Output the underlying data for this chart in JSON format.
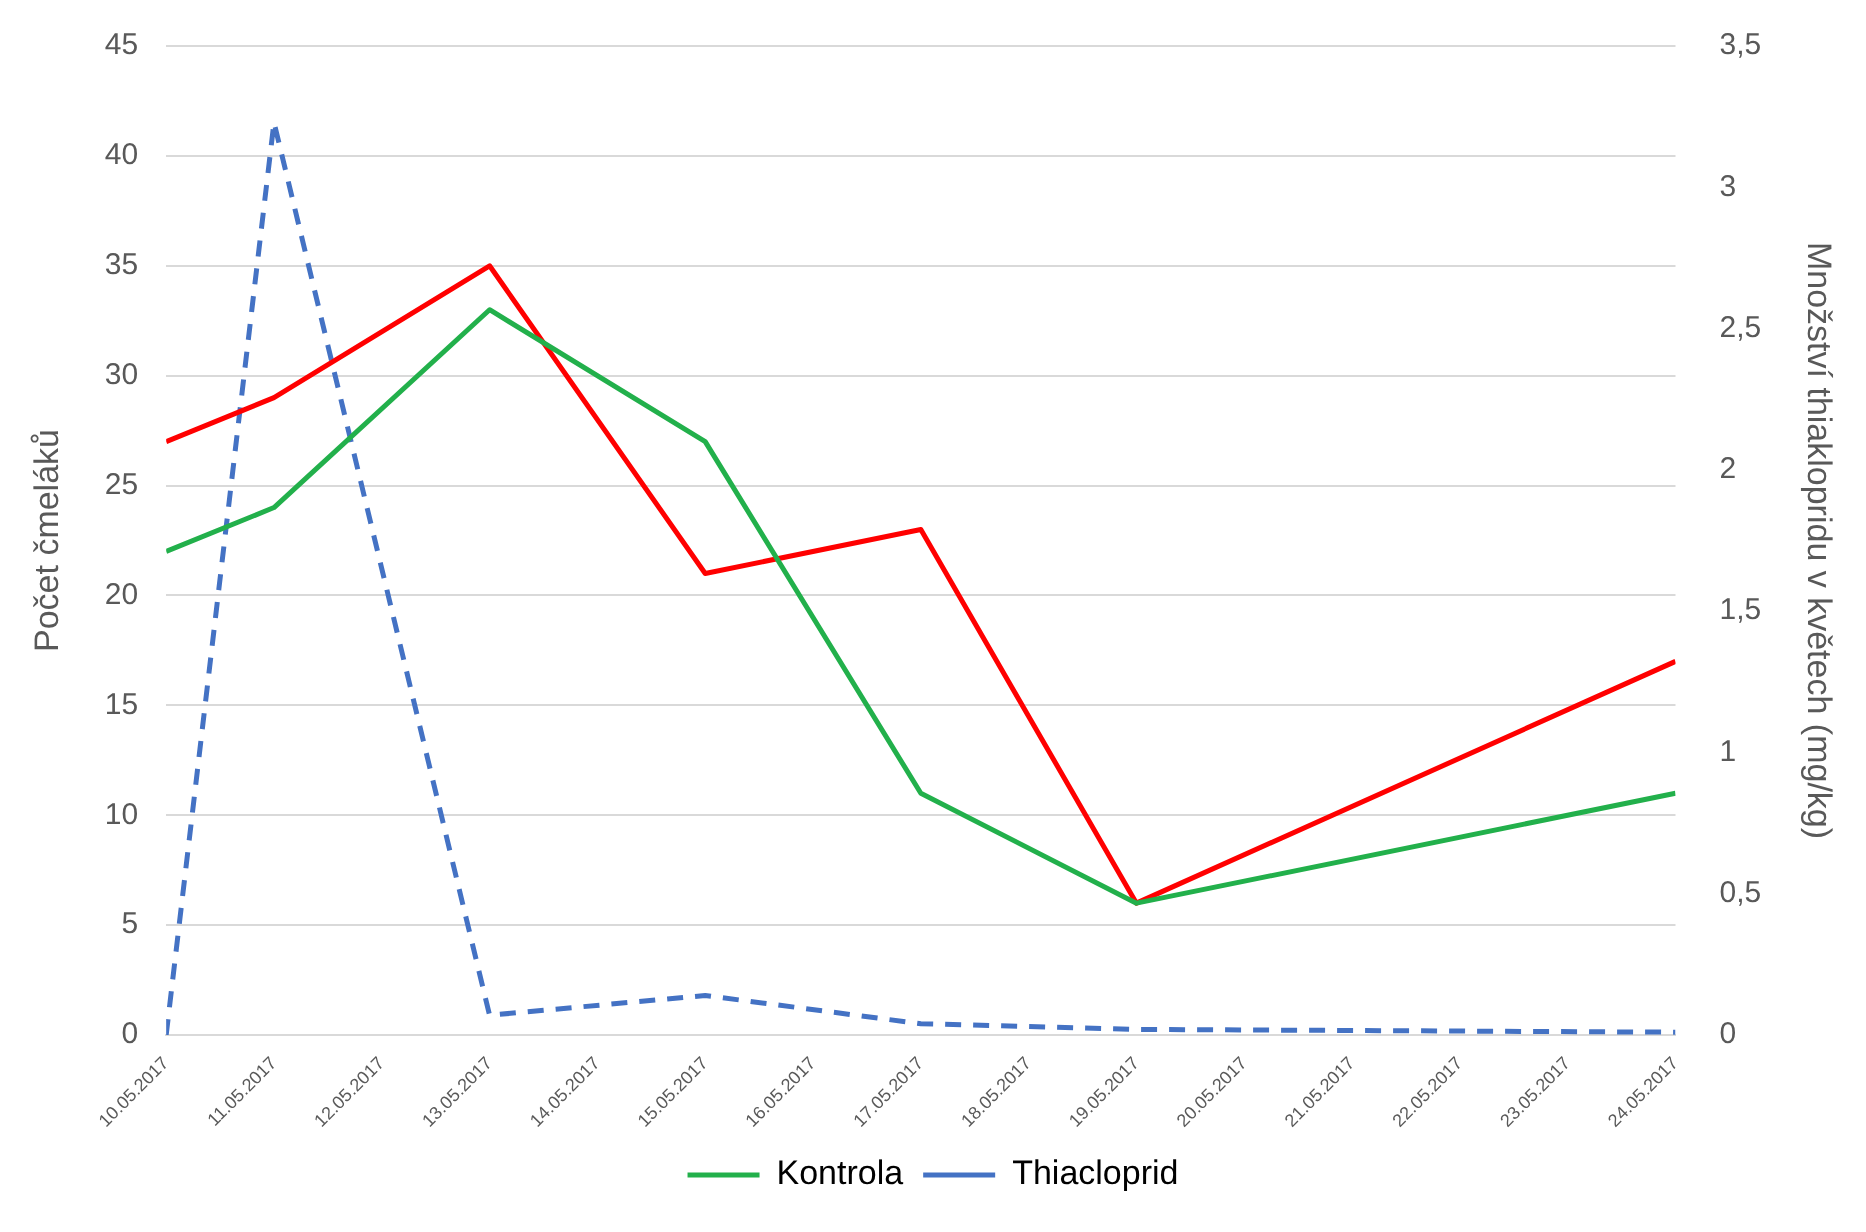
{
  "chart_data": {
    "type": "line",
    "ylabel": "Počet čmeláků",
    "y2label": "Množství thiaklopridu v květech (mg/kg)",
    "xlim": [
      "2017-05-10",
      "2017-05-24"
    ],
    "xticks": [
      {
        "value": "2017-05-10",
        "label": "10.05.2017"
      },
      {
        "value": "2017-05-11",
        "label": "11.05.2017"
      },
      {
        "value": "2017-05-12",
        "label": "12.05.2017"
      },
      {
        "value": "2017-05-13",
        "label": "13.05.2017"
      },
      {
        "value": "2017-05-14",
        "label": "14.05.2017"
      },
      {
        "value": "2017-05-15",
        "label": "15.05.2017"
      },
      {
        "value": "2017-05-16",
        "label": "16.05.2017"
      },
      {
        "value": "2017-05-17",
        "label": "17.05.2017"
      },
      {
        "value": "2017-05-18",
        "label": "18.05.2017"
      },
      {
        "value": "2017-05-19",
        "label": "19.05.2017"
      },
      {
        "value": "2017-05-20",
        "label": "20.05.2017"
      },
      {
        "value": "2017-05-21",
        "label": "21.05.2017"
      },
      {
        "value": "2017-05-22",
        "label": "22.05.2017"
      },
      {
        "value": "2017-05-23",
        "label": "23.05.2017"
      },
      {
        "value": "2017-05-24",
        "label": "24.05.2017"
      }
    ],
    "ylim": [
      0,
      45
    ],
    "yticks": [
      0,
      5,
      10,
      15,
      20,
      25,
      30,
      35,
      40,
      45
    ],
    "y2lim": [
      0,
      3.5
    ],
    "y2ticks": [
      0,
      {
        "value": 0.5,
        "label": "0,5"
      },
      1,
      {
        "value": 1.5,
        "label": "1,5"
      },
      2,
      {
        "value": 2.5,
        "label": "2,5"
      },
      3,
      {
        "value": 3.5,
        "label": "3,5"
      }
    ],
    "grid": "y",
    "legend": "bottom",
    "marker": "none",
    "series": [
      {
        "name": "Kontrola",
        "color": "#22b04b",
        "x": [
          "2017-05-10",
          "2017-05-11",
          "2017-05-13",
          "2017-05-15",
          "2017-05-17",
          "2017-05-19",
          "2017-05-24"
        ],
        "values": [
          22,
          24,
          33,
          27,
          11,
          6,
          11
        ]
      },
      {
        "color": "#ff0000",
        "x": [
          "2017-05-10",
          "2017-05-11",
          "2017-05-13",
          "2017-05-15",
          "2017-05-17",
          "2017-05-19",
          "2017-05-24"
        ],
        "values": [
          27,
          29,
          35,
          21,
          23,
          6,
          17
        ]
      },
      {
        "name": "Thiacloprid",
        "color": "#4472c4",
        "axis": "y2",
        "line_style": "dashed",
        "x": [
          "2017-05-10",
          "2017-05-11",
          "2017-05-13",
          "2017-05-15",
          "2017-05-17",
          "2017-05-19",
          "2017-05-24"
        ],
        "values": [
          0,
          3.23,
          0.07,
          0.14,
          0.04,
          0.02,
          0.01
        ]
      }
    ]
  }
}
